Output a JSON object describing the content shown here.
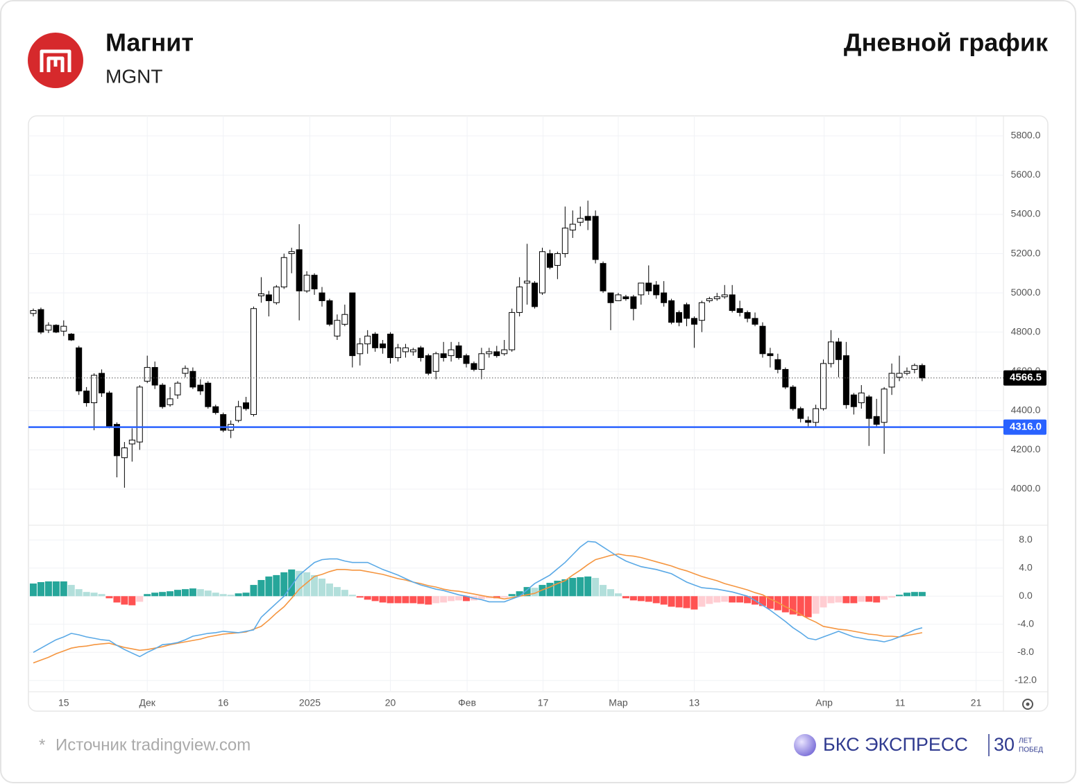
{
  "header": {
    "title": "Магнит",
    "ticker": "MGNT",
    "chart_title": "Дневной график"
  },
  "footer": {
    "asterisk": "*",
    "source": "Источник tradingview.com",
    "brand": "БКС ЭКСПРЕСС",
    "years": "30",
    "years_top": "ЛЕТ",
    "years_bottom": "ПОБЕД"
  },
  "chart_data": [
    {
      "type": "candlestick",
      "up_color": "#ffffff",
      "down_color": "#000000",
      "x": [
        0,
        1,
        2,
        3,
        4,
        5,
        6,
        7,
        8,
        9,
        10,
        11,
        12,
        13,
        14,
        15,
        16,
        17,
        18,
        19,
        20,
        21,
        22,
        23,
        24,
        25,
        26,
        27,
        28,
        29,
        30,
        31,
        32,
        33,
        34,
        35,
        36,
        37,
        38,
        39,
        40,
        41,
        42,
        43,
        44,
        45,
        46,
        47,
        48,
        49,
        50,
        51,
        52,
        53,
        54,
        55,
        56,
        57,
        58,
        59,
        60,
        61,
        62,
        63,
        64,
        65,
        66,
        67,
        68,
        69,
        70,
        71,
        72,
        73,
        74,
        75,
        76,
        77,
        78,
        79,
        80,
        81,
        82,
        83,
        84,
        85,
        86,
        87,
        88,
        89,
        90,
        91,
        92,
        93,
        94,
        95,
        96,
        97,
        98,
        99,
        100,
        101,
        102,
        103,
        104,
        105,
        106,
        107,
        108,
        109,
        110,
        111,
        112,
        113,
        114,
        115,
        116,
        117
      ],
      "open": [
        4895,
        4915,
        4810,
        4835,
        4805,
        4790,
        4720,
        4500,
        4440,
        4590,
        4490,
        4330,
        4160,
        4230,
        4240,
        4550,
        4620,
        4530,
        4430,
        4480,
        4590,
        4600,
        4530,
        4540,
        4420,
        4380,
        4300,
        4350,
        4440,
        4380,
        4985,
        4990,
        4950,
        5030,
        5200,
        5220,
        5010,
        5090,
        5000,
        4960,
        4780,
        4840,
        5000,
        4690,
        4740,
        4790,
        4740,
        4790,
        4670,
        4700,
        4700,
        4720,
        4680,
        4600,
        4690,
        4680,
        4730,
        4680,
        4640,
        4610,
        4690,
        4700,
        4690,
        4710,
        4900,
        5050,
        5050,
        5000,
        5200,
        5140,
        5200,
        5320,
        5360,
        5390,
        5390,
        5150,
        5000,
        4960,
        4980,
        4980,
        4990,
        5050,
        5040,
        5000,
        4960,
        4900,
        4940,
        4870,
        4860,
        4960,
        4970,
        4980,
        4990,
        4920,
        4900,
        4870,
        4830,
        4690,
        4660,
        4610,
        4520,
        4410,
        4350,
        4340,
        4410,
        4640,
        4750,
        4680,
        4480,
        4440,
        4470,
        4370,
        4340,
        4520,
        4570,
        4590,
        4610,
        4630
      ],
      "high": [
        4920,
        4925,
        4850,
        4840,
        4860,
        4795,
        4730,
        4520,
        4590,
        4610,
        4500,
        4340,
        4240,
        4310,
        4530,
        4680,
        4650,
        4540,
        4520,
        4550,
        4630,
        4620,
        4560,
        4550,
        4430,
        4390,
        4350,
        4450,
        4470,
        4930,
        5080,
        5010,
        5040,
        5200,
        5230,
        5350,
        5110,
        5100,
        5030,
        4970,
        4890,
        4940,
        5000,
        4770,
        4810,
        4800,
        4760,
        4800,
        4740,
        4740,
        4720,
        4730,
        4690,
        4700,
        4750,
        4750,
        4750,
        4690,
        4650,
        4720,
        4720,
        4730,
        4760,
        4920,
        5080,
        5250,
        5060,
        5230,
        5220,
        5210,
        5440,
        5420,
        5440,
        5470,
        5420,
        5160,
        5000,
        5000,
        4990,
        4990,
        5050,
        5140,
        5060,
        5060,
        4970,
        4910,
        4950,
        4880,
        4960,
        4980,
        5000,
        5040,
        5040,
        4960,
        4910,
        4900,
        4850,
        4720,
        4690,
        4620,
        4530,
        4420,
        4370,
        4430,
        4660,
        4810,
        4770,
        4750,
        4490,
        4530,
        4480,
        4460,
        4520,
        4640,
        4680,
        4620,
        4640,
        4640
      ],
      "low": [
        4880,
        4790,
        4795,
        4795,
        4780,
        4755,
        4480,
        4420,
        4300,
        4470,
        4310,
        4060,
        4007,
        4140,
        4200,
        4540,
        4510,
        4410,
        4420,
        4460,
        4570,
        4510,
        4480,
        4410,
        4380,
        4290,
        4260,
        4340,
        4400,
        4370,
        4950,
        4880,
        4940,
        5020,
        5100,
        4860,
        5000,
        4990,
        4930,
        4830,
        4760,
        4830,
        4620,
        4630,
        4690,
        4700,
        4690,
        4640,
        4650,
        4670,
        4680,
        4650,
        4580,
        4560,
        4650,
        4650,
        4660,
        4620,
        4600,
        4560,
        4670,
        4670,
        4680,
        4700,
        4880,
        4940,
        4920,
        4990,
        5120,
        5070,
        5180,
        5280,
        5340,
        5320,
        5150,
        5000,
        4810,
        4960,
        4960,
        4860,
        4940,
        4990,
        4970,
        4930,
        4840,
        4830,
        4830,
        4720,
        4800,
        4950,
        4960,
        4970,
        4900,
        4880,
        4850,
        4830,
        4670,
        4620,
        4590,
        4510,
        4400,
        4340,
        4320,
        4320,
        4400,
        4620,
        4570,
        4410,
        4380,
        4410,
        4220,
        4320,
        4180,
        4480,
        4550,
        4580,
        4590,
        4550
      ],
      "close": [
        4910,
        4800,
        4835,
        4800,
        4830,
        4760,
        4500,
        4440,
        4580,
        4490,
        4320,
        4170,
        4210,
        4250,
        4520,
        4620,
        4530,
        4420,
        4460,
        4540,
        4615,
        4520,
        4500,
        4420,
        4390,
        4300,
        4330,
        4420,
        4410,
        4920,
        4995,
        4960,
        5030,
        5180,
        5210,
        5010,
        5090,
        5020,
        4960,
        4840,
        4860,
        4890,
        4680,
        4740,
        4780,
        4720,
        4720,
        4670,
        4720,
        4720,
        4710,
        4670,
        4590,
        4690,
        4670,
        4710,
        4670,
        4640,
        4610,
        4690,
        4700,
        4680,
        4710,
        4900,
        5030,
        5060,
        4930,
        5210,
        5130,
        5200,
        5330,
        5350,
        5380,
        5370,
        5170,
        5010,
        4950,
        4990,
        4970,
        4920,
        5050,
        5010,
        4990,
        4950,
        4850,
        4850,
        4870,
        4840,
        4950,
        4970,
        4980,
        4990,
        4910,
        4900,
        4870,
        4840,
        4690,
        4680,
        4610,
        4520,
        4410,
        4360,
        4340,
        4410,
        4640,
        4750,
        4660,
        4430,
        4420,
        4490,
        4360,
        4330,
        4510,
        4590,
        4590,
        4600,
        4630,
        4566.5
      ],
      "ylim": [
        3816,
        5902
      ],
      "yticks": [
        {
          "value": 4000,
          "label": "4000.0"
        },
        {
          "value": 4200,
          "label": "4200.0"
        },
        {
          "value": 4400,
          "label": "4400.0"
        },
        {
          "value": 4600,
          "label": "4600.0"
        },
        {
          "value": 4800,
          "label": "4800.0"
        },
        {
          "value": 5000,
          "label": "5000.0"
        },
        {
          "value": 5200,
          "label": "5200.0"
        },
        {
          "value": 5400,
          "label": "5400.0"
        },
        {
          "value": 5600,
          "label": "5600.0"
        },
        {
          "value": 5800,
          "label": "5800.0"
        }
      ],
      "level": {
        "value": 4316,
        "label": "4316.0",
        "color": "#2962ff"
      },
      "last_price": 4566.5,
      "xlim": [
        -0.64,
        127.7
      ]
    },
    {
      "type": "macd",
      "x": [
        0,
        1,
        2,
        3,
        4,
        5,
        6,
        7,
        8,
        9,
        10,
        11,
        12,
        13,
        14,
        15,
        16,
        17,
        18,
        19,
        20,
        21,
        22,
        23,
        24,
        25,
        26,
        27,
        28,
        29,
        30,
        31,
        32,
        33,
        34,
        35,
        36,
        37,
        38,
        39,
        40,
        41,
        42,
        43,
        44,
        45,
        46,
        47,
        48,
        49,
        50,
        51,
        52,
        53,
        54,
        55,
        56,
        57,
        58,
        59,
        60,
        61,
        62,
        63,
        64,
        65,
        66,
        67,
        68,
        69,
        70,
        71,
        72,
        73,
        74,
        75,
        76,
        77,
        78,
        79,
        80,
        81,
        82,
        83,
        84,
        85,
        86,
        87,
        88,
        89,
        90,
        91,
        92,
        93,
        94,
        95,
        96,
        97,
        98,
        99,
        100,
        101,
        102,
        103,
        104,
        105,
        106,
        107,
        108,
        109,
        110,
        111,
        112,
        113,
        114,
        115,
        116,
        117
      ],
      "histogram": [
        1.8,
        2.0,
        2.1,
        2.1,
        2.1,
        1.6,
        1.0,
        0.6,
        0.5,
        0.3,
        -0.3,
        -0.9,
        -1.2,
        -1.3,
        -0.8,
        0.3,
        0.5,
        0.6,
        0.7,
        0.9,
        1.0,
        1.1,
        1.0,
        0.8,
        0.5,
        0.3,
        0.2,
        0.4,
        0.5,
        1.6,
        2.3,
        2.8,
        3.0,
        3.4,
        3.8,
        3.6,
        3.4,
        3.0,
        2.5,
        1.8,
        1.3,
        0.9,
        0.2,
        -0.2,
        -0.5,
        -0.7,
        -0.9,
        -1.0,
        -1.0,
        -1.0,
        -1.0,
        -1.1,
        -1.2,
        -1.0,
        -0.9,
        -0.7,
        -0.6,
        -0.7,
        -0.6,
        -0.4,
        -0.3,
        -0.3,
        -0.2,
        0.3,
        0.7,
        1.3,
        1.2,
        1.6,
        1.9,
        2.2,
        2.4,
        2.6,
        2.7,
        2.8,
        2.6,
        1.6,
        1.0,
        0.4,
        -0.3,
        -0.6,
        -0.7,
        -0.8,
        -1.0,
        -1.2,
        -1.5,
        -1.6,
        -1.7,
        -1.9,
        -1.5,
        -1.1,
        -0.9,
        -0.8,
        -0.9,
        -0.9,
        -1.0,
        -1.2,
        -1.4,
        -1.8,
        -2.0,
        -2.3,
        -2.6,
        -2.8,
        -3.0,
        -2.5,
        -1.6,
        -1.0,
        -0.9,
        -1.0,
        -1.0,
        -0.8,
        -0.8,
        -0.9,
        -0.5,
        -0.2,
        0.2,
        0.5,
        0.6,
        0.6
      ],
      "macd": [
        -8.0,
        -7.4,
        -6.8,
        -6.2,
        -5.8,
        -5.3,
        -5.5,
        -5.8,
        -6.0,
        -6.2,
        -6.3,
        -7.0,
        -7.6,
        -8.1,
        -8.6,
        -8.0,
        -7.5,
        -6.9,
        -6.8,
        -6.6,
        -6.2,
        -5.7,
        -5.5,
        -5.3,
        -5.2,
        -5.0,
        -5.1,
        -5.2,
        -5.0,
        -4.8,
        -3.0,
        -2.0,
        -1.0,
        0.0,
        1.5,
        3.0,
        3.9,
        4.8,
        5.2,
        5.3,
        5.3,
        5.0,
        4.8,
        4.8,
        4.8,
        4.3,
        3.8,
        3.4,
        3.0,
        2.5,
        2.0,
        1.6,
        1.3,
        1.0,
        0.8,
        0.5,
        0.2,
        0.0,
        -0.3,
        -0.5,
        -0.8,
        -0.8,
        -0.8,
        -0.4,
        0.0,
        0.9,
        1.8,
        2.4,
        3.0,
        3.9,
        4.8,
        5.9,
        7.0,
        7.8,
        7.7,
        7.0,
        6.3,
        5.6,
        5.0,
        4.6,
        4.2,
        4.0,
        3.8,
        3.5,
        3.2,
        2.6,
        2.0,
        1.6,
        1.2,
        1.1,
        1.0,
        0.8,
        0.6,
        0.3,
        0.0,
        -0.6,
        -1.3,
        -2.0,
        -2.8,
        -3.6,
        -4.5,
        -5.2,
        -6.0,
        -6.2,
        -5.8,
        -5.4,
        -5.0,
        -5.4,
        -5.8,
        -6.0,
        -6.2,
        -6.3,
        -6.5,
        -6.2,
        -5.8,
        -5.3,
        -4.8,
        -4.5
      ],
      "signal": [
        -9.5,
        -9.1,
        -8.7,
        -8.2,
        -7.8,
        -7.4,
        -7.2,
        -7.1,
        -6.9,
        -6.8,
        -6.7,
        -7.0,
        -7.3,
        -7.5,
        -7.7,
        -7.6,
        -7.4,
        -7.2,
        -6.9,
        -6.7,
        -6.5,
        -6.3,
        -6.1,
        -5.8,
        -5.6,
        -5.4,
        -5.3,
        -5.2,
        -5.1,
        -4.7,
        -4.3,
        -3.4,
        -2.4,
        -1.5,
        -0.3,
        1.0,
        1.9,
        2.8,
        3.1,
        3.5,
        3.8,
        3.8,
        3.7,
        3.7,
        3.5,
        3.3,
        3.1,
        2.8,
        2.5,
        2.3,
        2.0,
        1.8,
        1.5,
        1.3,
        1.0,
        0.8,
        0.7,
        0.5,
        0.3,
        0.1,
        -0.1,
        -0.2,
        -0.4,
        -0.2,
        0.0,
        0.2,
        0.4,
        0.9,
        1.3,
        1.8,
        2.2,
        3.0,
        3.7,
        4.5,
        5.2,
        5.5,
        5.8,
        6.0,
        5.8,
        5.7,
        5.5,
        5.2,
        4.9,
        4.6,
        4.3,
        3.9,
        3.6,
        3.2,
        2.8,
        2.5,
        2.2,
        1.8,
        1.5,
        1.2,
        0.9,
        0.5,
        0.2,
        -0.4,
        -0.9,
        -1.5,
        -2.0,
        -2.6,
        -3.2,
        -3.7,
        -4.3,
        -4.5,
        -4.7,
        -4.8,
        -5.0,
        -5.2,
        -5.4,
        -5.5,
        -5.7,
        -5.7,
        -5.8,
        -5.6,
        -5.4,
        -5.2
      ],
      "macd_color": "#5aa9e6",
      "signal_color": "#f5953f",
      "hist_colors": {
        "up_rising": "#26a69a",
        "up_falling": "#b2dfdb",
        "down_falling": "#ff5252",
        "down_rising": "#ffcdd2"
      },
      "ylim": [
        -13.6,
        10.1
      ],
      "yticks": [
        {
          "value": -12,
          "label": "-12.0"
        },
        {
          "value": -8,
          "label": "-8.0"
        },
        {
          "value": -4,
          "label": "-4.0"
        },
        {
          "value": 0,
          "label": "0.0"
        },
        {
          "value": 4,
          "label": "4.0"
        },
        {
          "value": 8,
          "label": "8.0"
        }
      ],
      "xlim": [
        -0.64,
        127.7
      ],
      "xticks": [
        {
          "value": 4,
          "label": "15"
        },
        {
          "value": 15,
          "label": "Дек"
        },
        {
          "value": 25,
          "label": "16"
        },
        {
          "value": 36.4,
          "label": "2025"
        },
        {
          "value": 47,
          "label": "20"
        },
        {
          "value": 57.1,
          "label": "Фев"
        },
        {
          "value": 67.1,
          "label": "17"
        },
        {
          "value": 77,
          "label": "Мар"
        },
        {
          "value": 87,
          "label": "13"
        },
        {
          "value": 104.1,
          "label": "Апр"
        },
        {
          "value": 114.1,
          "label": "11"
        },
        {
          "value": 124.1,
          "label": "21"
        }
      ]
    }
  ]
}
